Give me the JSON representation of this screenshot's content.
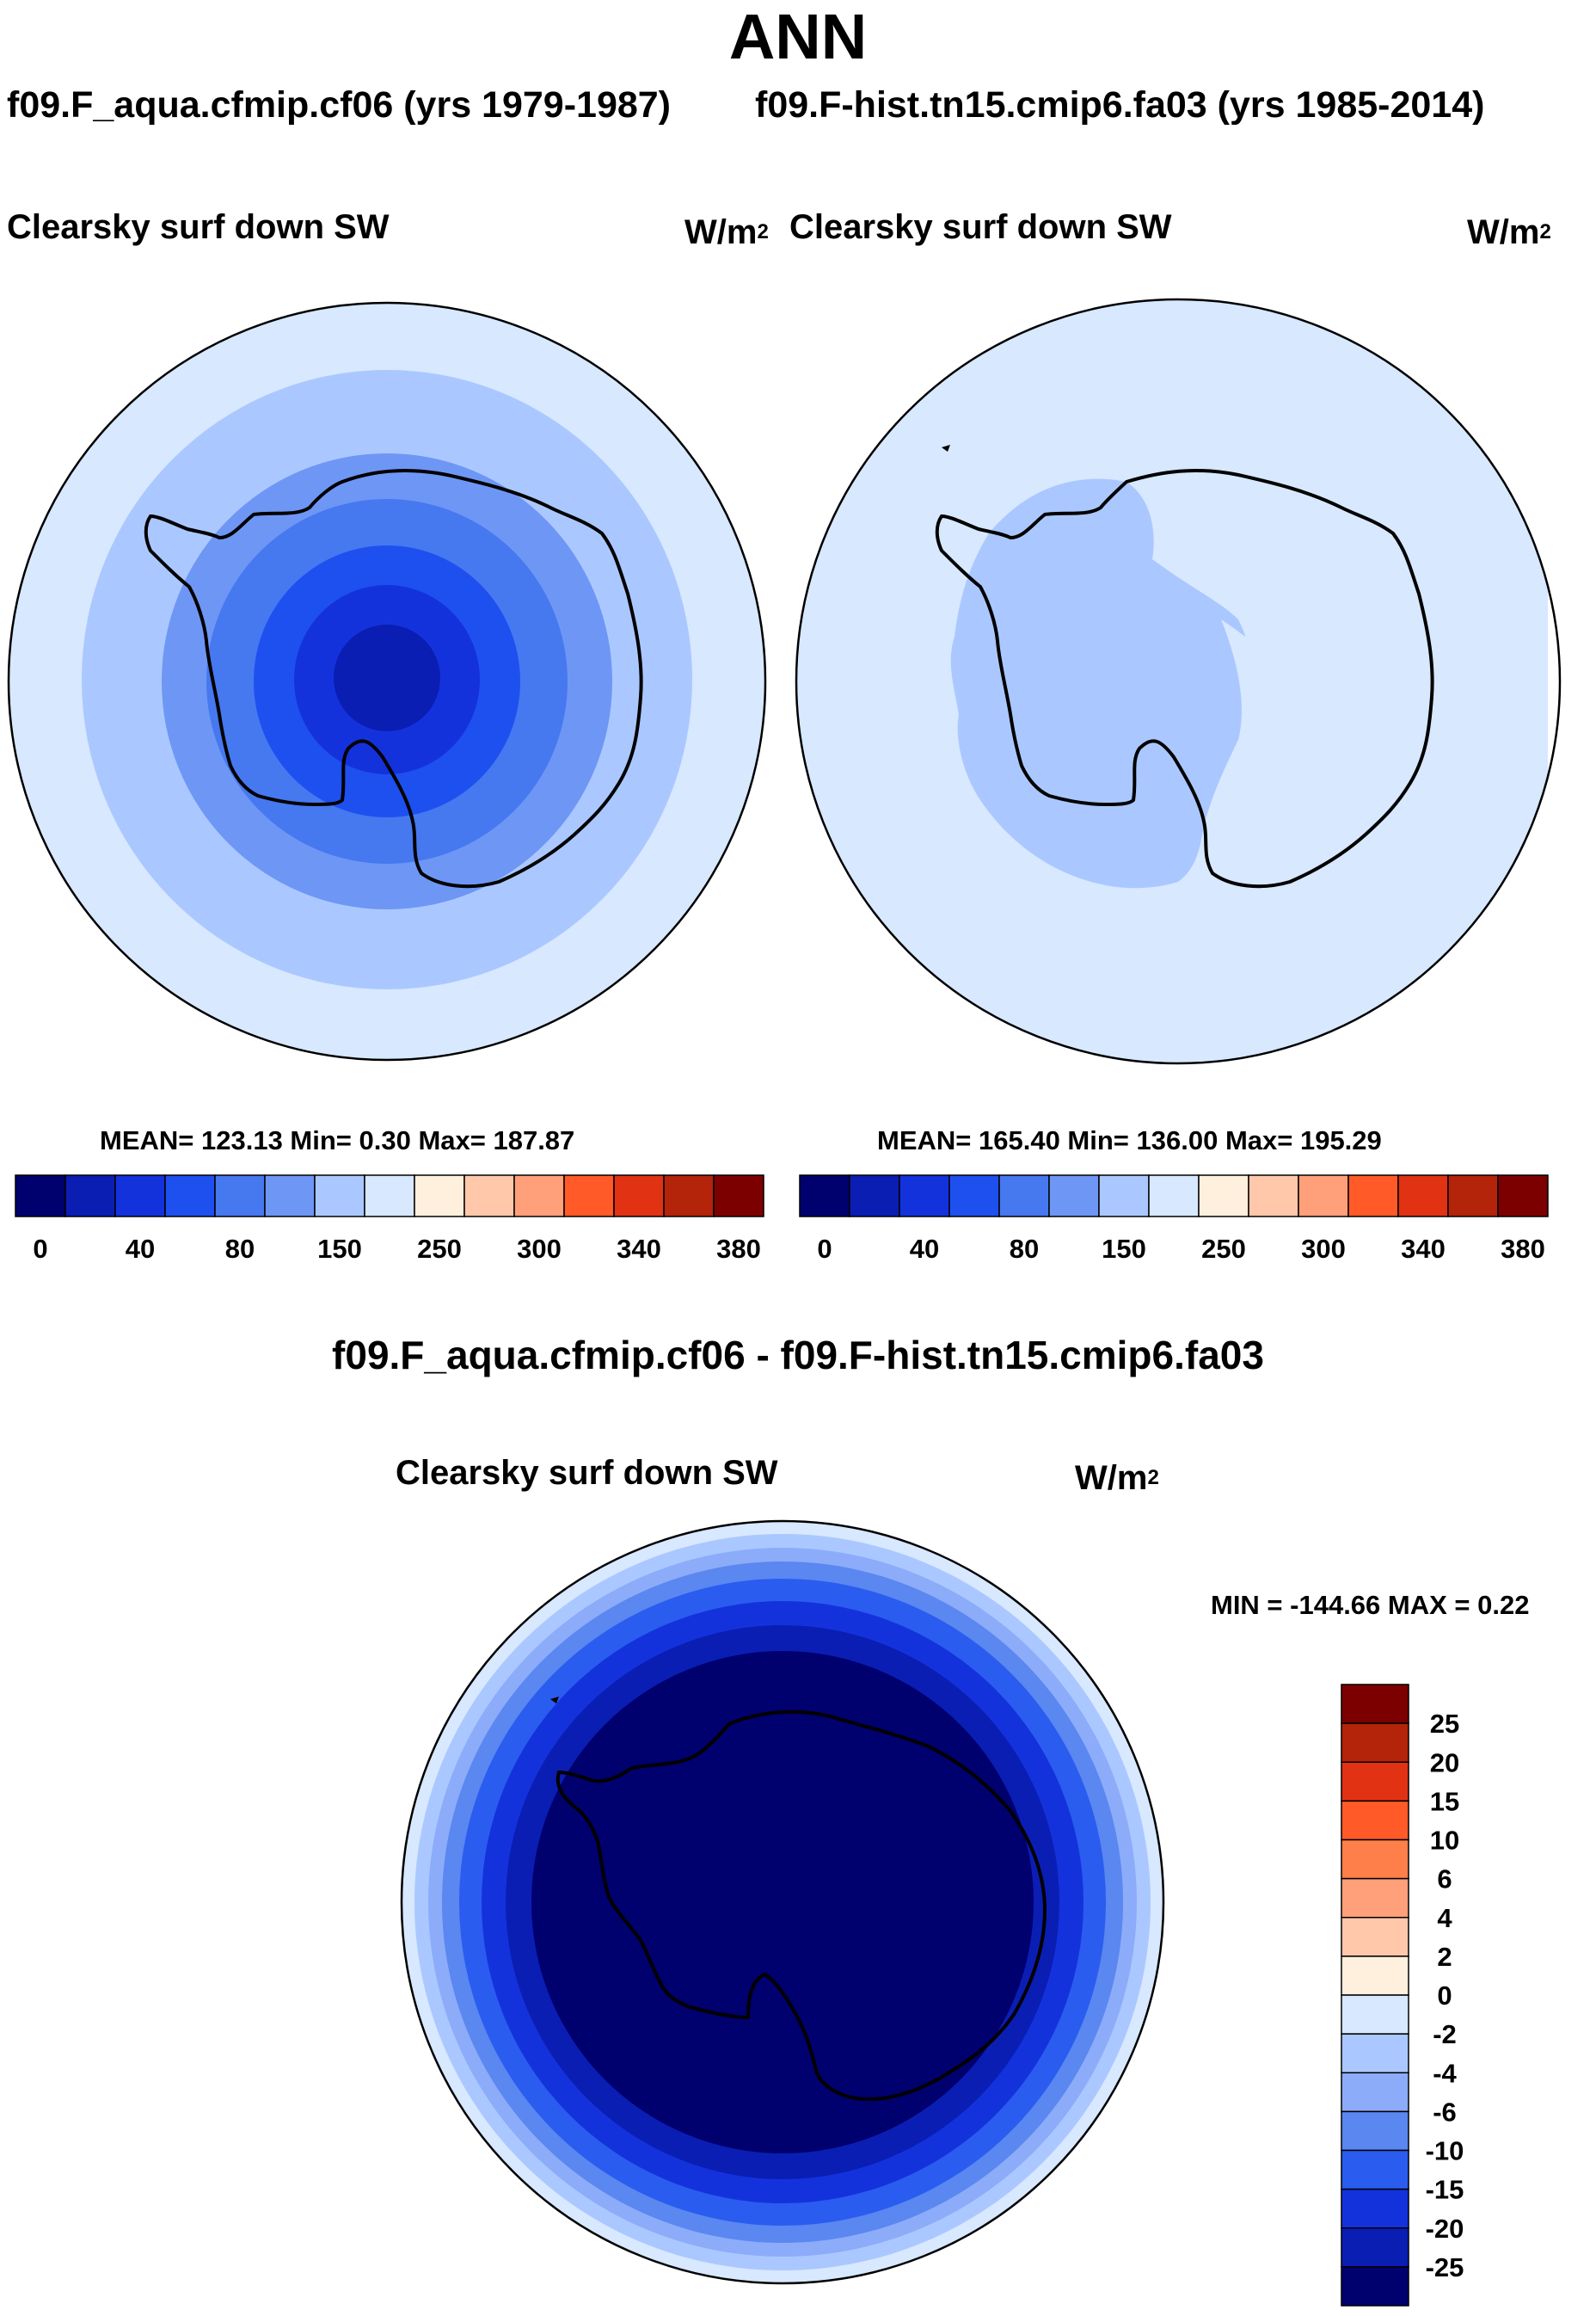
{
  "main_title": "ANN",
  "panels": [
    {
      "case_title": "f09.F_aqua.cfmip.cf06 (yrs 1979-1987)",
      "variable": "Clearsky surf down SW",
      "units_base": "W/m",
      "units_exp": "2",
      "stats": "MEAN= 123.13  Min=   0.30  Max= 187.87",
      "mean": 123.13,
      "min": 0.3,
      "max": 187.87
    },
    {
      "case_title": "f09.F-hist.tn15.cmip6.fa03 (yrs 1985-2014)",
      "variable": "Clearsky surf down SW",
      "units_base": "W/m",
      "units_exp": "2",
      "stats": "MEAN= 165.40  Min= 136.00  Max= 195.29",
      "mean": 165.4,
      "min": 136.0,
      "max": 195.29
    }
  ],
  "diff": {
    "title": "f09.F_aqua.cfmip.cf06 - f09.F-hist.tn15.cmip6.fa03",
    "variable": "Clearsky surf down SW",
    "units_base": "W/m",
    "units_exp": "2",
    "stats": "MIN = -144.66 MAX =   0.22",
    "min": -144.66,
    "max": 0.22
  },
  "chart_data": [
    {
      "type": "heatmap",
      "projection": "south polar stereographic",
      "title": "Clearsky surf down SW",
      "legend_orientation": "horizontal",
      "colorbar_labels": [
        "0",
        "40",
        "80",
        "150",
        "250",
        "300",
        "340",
        "380"
      ],
      "colorbar_colors": [
        "#00006e",
        "#0a1eb4",
        "#1432dc",
        "#1e50f0",
        "#4678f0",
        "#6e96f5",
        "#aac8ff",
        "#d7e8ff",
        "#fff0de",
        "#ffc8aa",
        "#ffa07a",
        "#ff5a28",
        "#e13214",
        "#b4240a",
        "#7d0000"
      ],
      "contour_levels_center_to_edge": [
        0,
        10,
        40,
        60,
        80,
        120,
        150
      ],
      "contour_colors_center_to_edge": [
        "#00006e",
        "#0a1eb4",
        "#1432dc",
        "#1e50f0",
        "#4678f0",
        "#6e96f5",
        "#aac8ff",
        "#d7e8ff"
      ]
    },
    {
      "type": "heatmap",
      "projection": "south polar stereographic",
      "title": "Clearsky surf down SW",
      "legend_orientation": "horizontal",
      "colorbar_labels": [
        "0",
        "40",
        "80",
        "150",
        "250",
        "300",
        "340",
        "380"
      ],
      "colorbar_colors": [
        "#00006e",
        "#0a1eb4",
        "#1432dc",
        "#1e50f0",
        "#4678f0",
        "#6e96f5",
        "#aac8ff",
        "#d7e8ff",
        "#fff0de",
        "#ffc8aa",
        "#ffa07a",
        "#ff5a28",
        "#e13214",
        "#b4240a",
        "#7d0000"
      ],
      "field_description": "interior ~140 band over continent, outer ~150 band over ocean",
      "contour_colors": [
        "#aac8ff",
        "#d7e8ff"
      ]
    },
    {
      "type": "heatmap",
      "projection": "south polar stereographic",
      "title": "Clearsky surf down SW",
      "legend_orientation": "vertical",
      "colorbar_labels": [
        "25",
        "20",
        "15",
        "10",
        "6",
        "4",
        "2",
        "0",
        "-2",
        "-4",
        "-6",
        "-10",
        "-15",
        "-20",
        "-25"
      ],
      "colorbar_colors": [
        "#7d0000",
        "#b4240a",
        "#e13214",
        "#ff5a28",
        "#ff7f4a",
        "#ffa07a",
        "#ffc8aa",
        "#fff0de",
        "#d7e8ff",
        "#aac8ff",
        "#8cacfa",
        "#5a87f0",
        "#2a5cf0",
        "#1432dc",
        "#0a1eb4",
        "#00006e"
      ],
      "contour_colors_edge_to_center": [
        "#d7e8ff",
        "#aac8ff",
        "#8cacfa",
        "#5a87f0",
        "#2a5cf0",
        "#1432dc",
        "#0a1eb4",
        "#00006e"
      ]
    }
  ]
}
